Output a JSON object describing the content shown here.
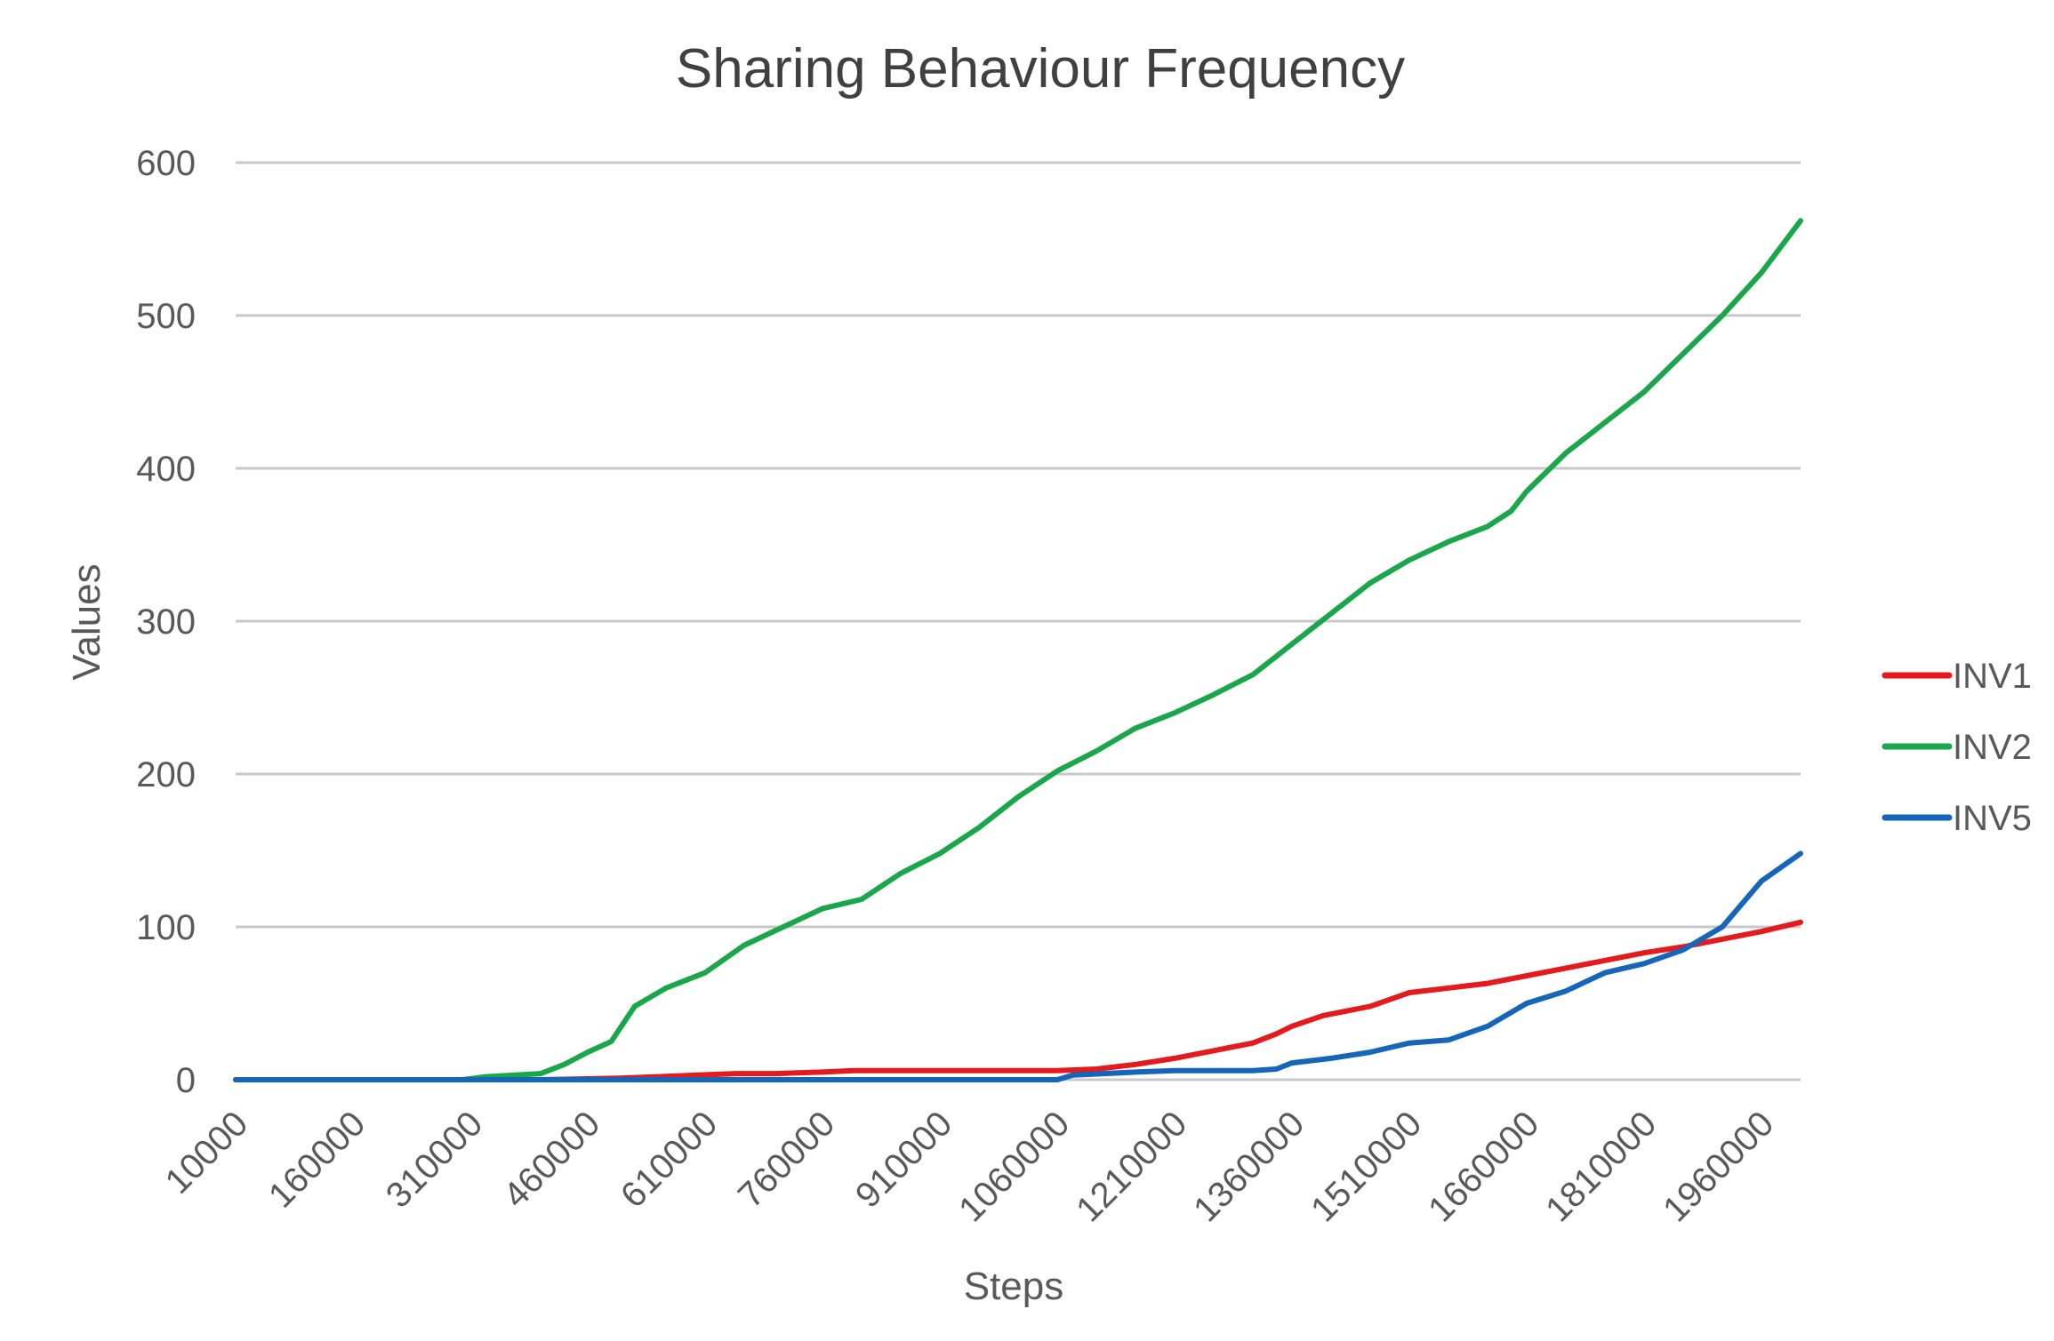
{
  "chart_data": {
    "type": "line",
    "title": "Sharing Behaviour Frequency",
    "xlabel": "Steps",
    "ylabel": "Values",
    "x_tick_labels": [
      "10000",
      "160000",
      "310000",
      "460000",
      "610000",
      "760000",
      "910000",
      "1060000",
      "1210000",
      "1360000",
      "1510000",
      "1660000",
      "1810000",
      "1960000"
    ],
    "y_tick_labels": [
      "0",
      "100",
      "200",
      "300",
      "400",
      "500",
      "600"
    ],
    "xlim": [
      10000,
      2010000
    ],
    "ylim": [
      0,
      600
    ],
    "grid": "horizontal",
    "legend_position": "right",
    "series": [
      {
        "name": "INV1",
        "color": "#e41a1c",
        "points": [
          [
            10000,
            0
          ],
          [
            100000,
            0
          ],
          [
            200000,
            0
          ],
          [
            300000,
            0
          ],
          [
            400000,
            0
          ],
          [
            500000,
            1
          ],
          [
            550000,
            2
          ],
          [
            600000,
            3
          ],
          [
            650000,
            4
          ],
          [
            700000,
            4
          ],
          [
            760000,
            5
          ],
          [
            800000,
            6
          ],
          [
            900000,
            6
          ],
          [
            1000000,
            6
          ],
          [
            1060000,
            6
          ],
          [
            1110000,
            7
          ],
          [
            1160000,
            10
          ],
          [
            1210000,
            14
          ],
          [
            1260000,
            19
          ],
          [
            1310000,
            24
          ],
          [
            1340000,
            30
          ],
          [
            1360000,
            35
          ],
          [
            1400000,
            42
          ],
          [
            1460000,
            48
          ],
          [
            1510000,
            57
          ],
          [
            1560000,
            60
          ],
          [
            1610000,
            63
          ],
          [
            1660000,
            68
          ],
          [
            1710000,
            73
          ],
          [
            1760000,
            78
          ],
          [
            1810000,
            83
          ],
          [
            1860000,
            87
          ],
          [
            1910000,
            92
          ],
          [
            1960000,
            97
          ],
          [
            2010000,
            103
          ]
        ]
      },
      {
        "name": "INV2",
        "color": "#1aa64a",
        "points": [
          [
            10000,
            0
          ],
          [
            160000,
            0
          ],
          [
            300000,
            0
          ],
          [
            330000,
            2
          ],
          [
            400000,
            4
          ],
          [
            430000,
            10
          ],
          [
            460000,
            18
          ],
          [
            490000,
            25
          ],
          [
            520000,
            48
          ],
          [
            560000,
            60
          ],
          [
            610000,
            70
          ],
          [
            660000,
            88
          ],
          [
            710000,
            100
          ],
          [
            760000,
            112
          ],
          [
            810000,
            118
          ],
          [
            860000,
            135
          ],
          [
            910000,
            148
          ],
          [
            960000,
            165
          ],
          [
            1010000,
            185
          ],
          [
            1060000,
            202
          ],
          [
            1110000,
            215
          ],
          [
            1160000,
            230
          ],
          [
            1210000,
            240
          ],
          [
            1260000,
            252
          ],
          [
            1310000,
            265
          ],
          [
            1360000,
            285
          ],
          [
            1410000,
            305
          ],
          [
            1460000,
            325
          ],
          [
            1510000,
            340
          ],
          [
            1560000,
            352
          ],
          [
            1610000,
            362
          ],
          [
            1640000,
            372
          ],
          [
            1660000,
            385
          ],
          [
            1710000,
            410
          ],
          [
            1760000,
            430
          ],
          [
            1810000,
            450
          ],
          [
            1860000,
            475
          ],
          [
            1910000,
            500
          ],
          [
            1960000,
            528
          ],
          [
            2010000,
            562
          ]
        ]
      },
      {
        "name": "INV5",
        "color": "#1565b8",
        "points": [
          [
            10000,
            0
          ],
          [
            300000,
            0
          ],
          [
            600000,
            0
          ],
          [
            900000,
            0
          ],
          [
            1060000,
            0
          ],
          [
            1080000,
            3
          ],
          [
            1160000,
            5
          ],
          [
            1210000,
            6
          ],
          [
            1260000,
            6
          ],
          [
            1310000,
            6
          ],
          [
            1340000,
            7
          ],
          [
            1360000,
            11
          ],
          [
            1410000,
            14
          ],
          [
            1460000,
            18
          ],
          [
            1510000,
            24
          ],
          [
            1560000,
            26
          ],
          [
            1610000,
            35
          ],
          [
            1660000,
            50
          ],
          [
            1710000,
            58
          ],
          [
            1760000,
            70
          ],
          [
            1810000,
            76
          ],
          [
            1860000,
            85
          ],
          [
            1910000,
            100
          ],
          [
            1960000,
            130
          ],
          [
            2010000,
            148
          ]
        ]
      }
    ]
  }
}
